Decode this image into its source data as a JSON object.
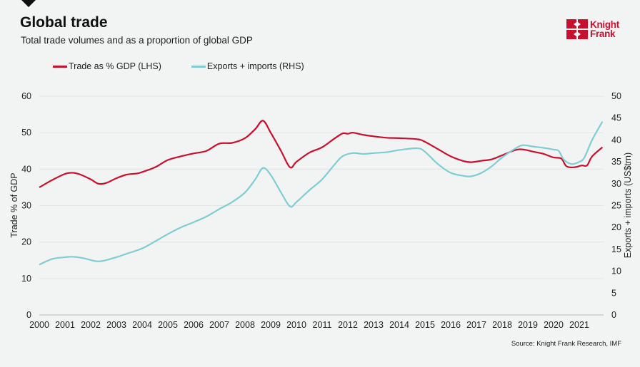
{
  "header": {
    "title": "Global trade",
    "subtitle": "Total trade volumes and as a proportion of global GDP",
    "logo_text": [
      "Knight",
      "Frank"
    ]
  },
  "source": "Source: Knight Frank Research, IMF",
  "chart_data": {
    "type": "line",
    "title": "Global trade",
    "xlabel": "",
    "ylabel": "Trade % of GDP",
    "y2label": "Exports + imports (US$trn)",
    "xlim": [
      2000,
      2021.95
    ],
    "ylim": [
      0,
      60
    ],
    "y2lim": [
      0,
      50
    ],
    "x_ticks": [
      "2000",
      "2001",
      "2002",
      "2003",
      "2004",
      "2005",
      "2006",
      "2007",
      "2008",
      "2009",
      "2010",
      "2011",
      "2012",
      "2013",
      "2014",
      "2015",
      "2016",
      "2017",
      "2018",
      "2019",
      "2020",
      "2021"
    ],
    "y_ticks": [
      "0",
      "10",
      "20",
      "30",
      "40",
      "50",
      "60"
    ],
    "y2_ticks": [
      "0",
      "5",
      "10",
      "15",
      "20",
      "25",
      "30",
      "35",
      "40",
      "45",
      "50"
    ],
    "grid": true,
    "legend_position": "top-left",
    "series": [
      {
        "name": "Trade as % GDP (LHS)",
        "axis": "left",
        "color": "#c8102e",
        "points": [
          [
            2000.0,
            35
          ],
          [
            2000.5,
            37
          ],
          [
            2001.0,
            38.7
          ],
          [
            2001.3,
            39
          ],
          [
            2001.6,
            38.5
          ],
          [
            2002.0,
            37.2
          ],
          [
            2002.3,
            36
          ],
          [
            2002.6,
            36.2
          ],
          [
            2003.0,
            37.5
          ],
          [
            2003.4,
            38.5
          ],
          [
            2003.8,
            38.8
          ],
          [
            2004.0,
            39.2
          ],
          [
            2004.5,
            40.5
          ],
          [
            2005.0,
            42.5
          ],
          [
            2005.5,
            43.5
          ],
          [
            2006.0,
            44.3
          ],
          [
            2006.5,
            45
          ],
          [
            2007.0,
            47
          ],
          [
            2007.5,
            47.2
          ],
          [
            2008.0,
            48.5
          ],
          [
            2008.4,
            51
          ],
          [
            2008.7,
            53.3
          ],
          [
            2009.0,
            50
          ],
          [
            2009.4,
            45
          ],
          [
            2009.75,
            40.5
          ],
          [
            2010.0,
            42
          ],
          [
            2010.5,
            44.5
          ],
          [
            2011.0,
            46
          ],
          [
            2011.5,
            48.5
          ],
          [
            2011.8,
            49.8
          ],
          [
            2012.0,
            49.7
          ],
          [
            2012.2,
            50
          ],
          [
            2012.6,
            49.4
          ],
          [
            2013.0,
            49
          ],
          [
            2013.5,
            48.6
          ],
          [
            2014.0,
            48.5
          ],
          [
            2014.7,
            48.2
          ],
          [
            2015.0,
            47.5
          ],
          [
            2015.5,
            45.5
          ],
          [
            2016.0,
            43.5
          ],
          [
            2016.5,
            42.2
          ],
          [
            2016.8,
            41.9
          ],
          [
            2017.2,
            42.3
          ],
          [
            2017.6,
            42.7
          ],
          [
            2018.0,
            43.8
          ],
          [
            2018.5,
            45.2
          ],
          [
            2018.8,
            45.4
          ],
          [
            2019.2,
            44.8
          ],
          [
            2019.6,
            44.2
          ],
          [
            2020.0,
            43.2
          ],
          [
            2020.3,
            42.9
          ],
          [
            2020.5,
            40.8
          ],
          [
            2020.8,
            40.5
          ],
          [
            2021.1,
            41
          ],
          [
            2021.3,
            41
          ],
          [
            2021.5,
            43.5
          ],
          [
            2021.9,
            46
          ]
        ]
      },
      {
        "name": "Exports + imports (RHS)",
        "axis": "right",
        "color": "#7fcdd3",
        "points": [
          [
            2000.0,
            11.5
          ],
          [
            2000.5,
            12.8
          ],
          [
            2001.0,
            13.2
          ],
          [
            2001.3,
            13.3
          ],
          [
            2001.7,
            13
          ],
          [
            2002.2,
            12.3
          ],
          [
            2002.5,
            12.4
          ],
          [
            2003.0,
            13.2
          ],
          [
            2003.4,
            14
          ],
          [
            2004.0,
            15.2
          ],
          [
            2004.5,
            16.8
          ],
          [
            2005.0,
            18.5
          ],
          [
            2005.5,
            20
          ],
          [
            2006.0,
            21.2
          ],
          [
            2006.5,
            22.5
          ],
          [
            2007.0,
            24.2
          ],
          [
            2007.5,
            25.8
          ],
          [
            2008.0,
            28
          ],
          [
            2008.4,
            31
          ],
          [
            2008.7,
            33.6
          ],
          [
            2009.0,
            32
          ],
          [
            2009.4,
            28
          ],
          [
            2009.75,
            24.8
          ],
          [
            2010.0,
            25.8
          ],
          [
            2010.5,
            28.5
          ],
          [
            2011.0,
            31
          ],
          [
            2011.5,
            34.5
          ],
          [
            2011.8,
            36.3
          ],
          [
            2012.2,
            37
          ],
          [
            2012.6,
            36.8
          ],
          [
            2013.0,
            37
          ],
          [
            2013.5,
            37.2
          ],
          [
            2014.0,
            37.7
          ],
          [
            2014.7,
            38.1
          ],
          [
            2015.0,
            37.3
          ],
          [
            2015.5,
            34.5
          ],
          [
            2016.0,
            32.5
          ],
          [
            2016.5,
            31.8
          ],
          [
            2016.8,
            31.7
          ],
          [
            2017.2,
            32.5
          ],
          [
            2017.6,
            34
          ],
          [
            2018.0,
            36
          ],
          [
            2018.5,
            38
          ],
          [
            2018.8,
            38.8
          ],
          [
            2019.2,
            38.5
          ],
          [
            2019.6,
            38.2
          ],
          [
            2020.0,
            37.8
          ],
          [
            2020.2,
            37.5
          ],
          [
            2020.4,
            35.5
          ],
          [
            2020.7,
            34.5
          ],
          [
            2021.0,
            35
          ],
          [
            2021.2,
            36
          ],
          [
            2021.5,
            40
          ],
          [
            2021.9,
            44.2
          ]
        ]
      }
    ]
  }
}
